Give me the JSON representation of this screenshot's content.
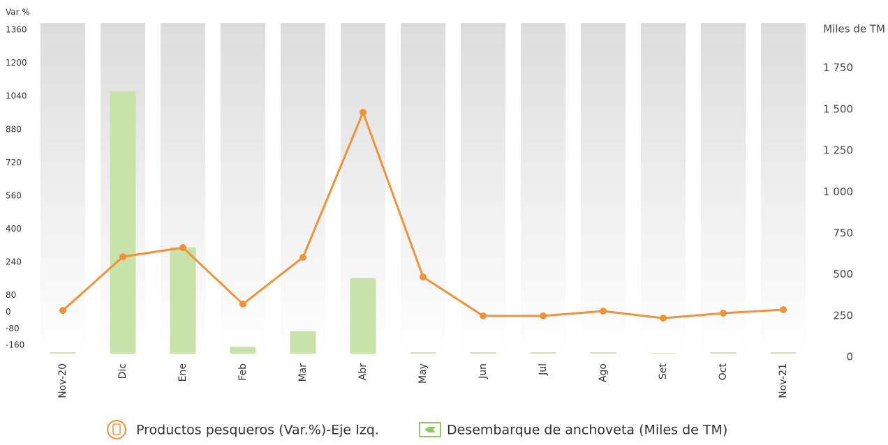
{
  "chart_data": {
    "type": "bar-line",
    "y_label": "Var %",
    "y2_label": "Miles de TM",
    "categories": [
      "Nov-20",
      "Dic",
      "Ene",
      "Feb",
      "Mar",
      "Abr",
      "May",
      "Jun",
      "Jul",
      "Ago",
      "Set",
      "Oct",
      "Nov-21"
    ],
    "series": [
      {
        "name": "Productos pesqueros (Var.%)-Eje Izq.",
        "type": "line",
        "color": "#f0923a",
        "values": [
          8,
          267,
          311,
          39,
          264,
          963,
          170,
          -18,
          -18,
          5,
          -29,
          -5,
          12
        ]
      },
      {
        "name": "Desembarque de anchoveta (Miles de TM)",
        "type": "bar",
        "axis": "y2",
        "color": "#c8e3a9",
        "values": [
          8,
          1589,
          644,
          42,
          136,
          458,
          8,
          8,
          8,
          8,
          3,
          8,
          8
        ]
      }
    ],
    "ylim": [
      -200,
      1360
    ],
    "yticks": [
      -160,
      -80,
      0,
      80,
      240,
      400,
      560,
      720,
      880,
      1040,
      1200,
      1360
    ],
    "y2lim": [
      0,
      1960
    ],
    "y2ticks": [
      0,
      250,
      500,
      750,
      {
        "value": 1000,
        "label": "1 000"
      },
      {
        "value": 1250,
        "label": "1 250"
      },
      {
        "value": 1500,
        "label": "1 500"
      },
      {
        "value": 1750,
        "label": "1 750"
      }
    ]
  }
}
